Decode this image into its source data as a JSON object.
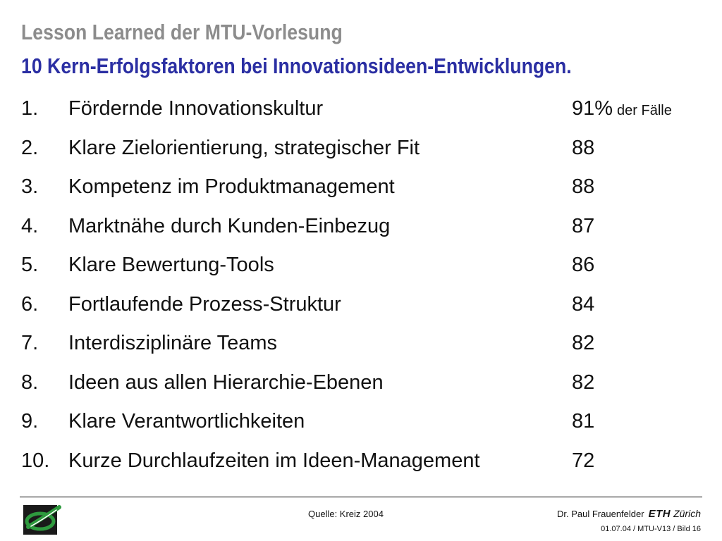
{
  "header": {
    "title": "Lesson Learned der MTU-Vorlesung",
    "subtitle": "10 Kern-Erfolgsfaktoren bei Innovationsideen-Entwicklungen."
  },
  "items": [
    {
      "num": "1.",
      "label": "Fördernde Innovationskultur",
      "value": "91%",
      "suffix": "der Fälle"
    },
    {
      "num": "2.",
      "label": "Klare Zielorientierung, strategischer Fit",
      "value": "88"
    },
    {
      "num": "3.",
      "label": "Kompetenz im Produktmanagement",
      "value": "88"
    },
    {
      "num": "4.",
      "label": "Marktnähe durch Kunden-Einbezug",
      "value": "87"
    },
    {
      "num": "5.",
      "label": "Klare Bewertung-Tools",
      "value": "86"
    },
    {
      "num": "6.",
      "label": "Fortlaufende Prozess-Struktur",
      "value": "84"
    },
    {
      "num": "7.",
      "label": "Interdisziplinäre Teams",
      "value": "82"
    },
    {
      "num": "8.",
      "label": "Ideen aus allen Hierarchie-Ebenen",
      "value": "82"
    },
    {
      "num": "9.",
      "label": "Klare Verantwortlichkeiten",
      "value": "81"
    },
    {
      "num": "10.",
      "label": "Kurze Durchlaufzeiten im Ideen-Management",
      "value": "72"
    }
  ],
  "footer": {
    "source": "Quelle: Kreiz 2004",
    "author": "Dr. Paul Frauenfelder",
    "institution": "ETH",
    "city": "Zürich",
    "slide_info": "01.07.04 / MTU-V13 / Bild 16",
    "logo_icon": "mtu-logo-icon"
  },
  "colors": {
    "title": "#8c8c8c",
    "subtitle": "#2b2fa3",
    "logo_green": "#2e9a3e",
    "logo_dark": "#1a1a1a"
  }
}
